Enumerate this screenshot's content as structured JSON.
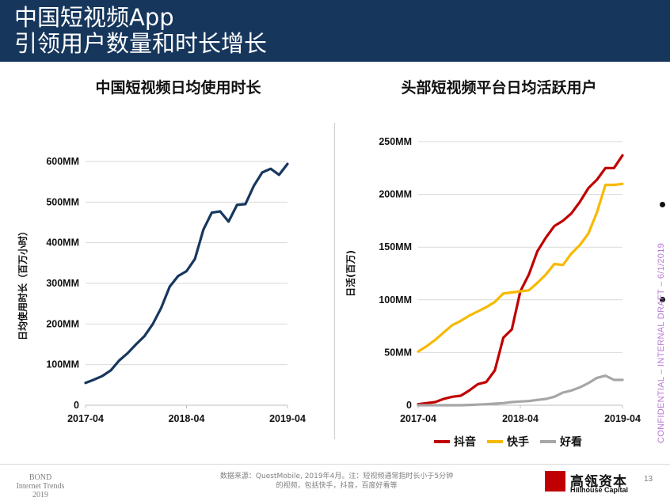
{
  "header": {
    "title_line1": "中国短视频App",
    "title_line2": "引领用户数量和时长增长"
  },
  "chart_data": [
    {
      "type": "line",
      "title": "中国短视频日均使用时长",
      "ylabel": "日均使用时长（百万小时）",
      "xlabel": "",
      "x_ticks": [
        "2017-04",
        "2018-04",
        "2019-04"
      ],
      "y_ticks": [
        "0",
        "100MM",
        "200MM",
        "300MM",
        "400MM",
        "500MM",
        "600MM"
      ],
      "ylim": [
        0,
        600
      ],
      "x_range": [
        0,
        24
      ],
      "grid": "horizontal",
      "series": [
        {
          "color": "#17375e",
          "x": [
            0,
            1,
            2,
            3,
            4,
            5,
            6,
            7,
            8,
            9,
            10,
            11,
            12,
            13,
            14,
            15,
            16,
            17,
            18,
            19,
            20,
            21,
            22,
            23,
            24
          ],
          "values": [
            55,
            63,
            72,
            86,
            110,
            128,
            150,
            170,
            200,
            240,
            292,
            318,
            330,
            360,
            432,
            474,
            477,
            452,
            493,
            495,
            540,
            573,
            582,
            567,
            594
          ]
        }
      ]
    },
    {
      "type": "line",
      "title": "头部短视频平台日均活跃用户",
      "ylabel": "日活(百万)",
      "xlabel": "",
      "x_ticks": [
        "2017-04",
        "2018-04",
        "2019-04"
      ],
      "y_ticks": [
        "0",
        "50MM",
        "100MM",
        "150MM",
        "200MM",
        "250MM"
      ],
      "ylim": [
        0,
        250
      ],
      "x_range": [
        0,
        24
      ],
      "grid": "horizontal",
      "legend": "bottom",
      "series": [
        {
          "name": "抖音",
          "color": "#c00000",
          "x": [
            0,
            1,
            2,
            3,
            4,
            5,
            6,
            7,
            8,
            9,
            10,
            11,
            12,
            13,
            14,
            15,
            16,
            17,
            18,
            19,
            20,
            21,
            22,
            23,
            24
          ],
          "values": [
            1,
            2,
            3,
            6,
            8,
            9,
            14,
            20,
            22,
            33,
            64,
            72,
            108,
            124,
            146,
            159,
            170,
            175,
            182,
            193,
            206,
            214,
            225,
            225,
            237
          ]
        },
        {
          "name": "快手",
          "color": "#f7b900",
          "x": [
            0,
            1,
            2,
            3,
            4,
            5,
            6,
            7,
            8,
            9,
            10,
            11,
            12,
            13,
            14,
            15,
            16,
            17,
            18,
            19,
            20,
            21,
            22,
            23,
            24
          ],
          "values": [
            51,
            56,
            62,
            69,
            76,
            80,
            85,
            89,
            93,
            98,
            106,
            107,
            108,
            109,
            116,
            124,
            134,
            133,
            144,
            152,
            163,
            183,
            209,
            209,
            210
          ]
        },
        {
          "name": "好看",
          "color": "#a6a6a6",
          "x": [
            0,
            1,
            2,
            3,
            4,
            5,
            6,
            7,
            8,
            9,
            10,
            11,
            12,
            13,
            14,
            15,
            16,
            17,
            18,
            19,
            20,
            21,
            22,
            23,
            24
          ],
          "values": [
            0,
            0,
            0,
            0,
            0,
            0,
            0.3,
            0.6,
            1,
            1.5,
            2,
            3,
            3.5,
            4,
            5,
            6,
            8,
            12,
            14,
            17,
            21,
            26,
            28,
            24,
            24
          ]
        }
      ]
    }
  ],
  "side": {
    "watermark": "CONFIDENTIAL – INTERNAL DRAFT – 6/1/2019"
  },
  "footer": {
    "bond_line1": "BOND",
    "bond_line2": "Internet Trends",
    "bond_line3": "2019",
    "source_line1": "数据来源：QuestMobile, 2019年4月。注：短视频通常指时长小于5分钟",
    "source_line2": "的视频，包括快手，抖音，百度好看等",
    "logo_cn": "高瓴资本",
    "logo_en": "Hillhouse Capital",
    "page_number": "13"
  }
}
